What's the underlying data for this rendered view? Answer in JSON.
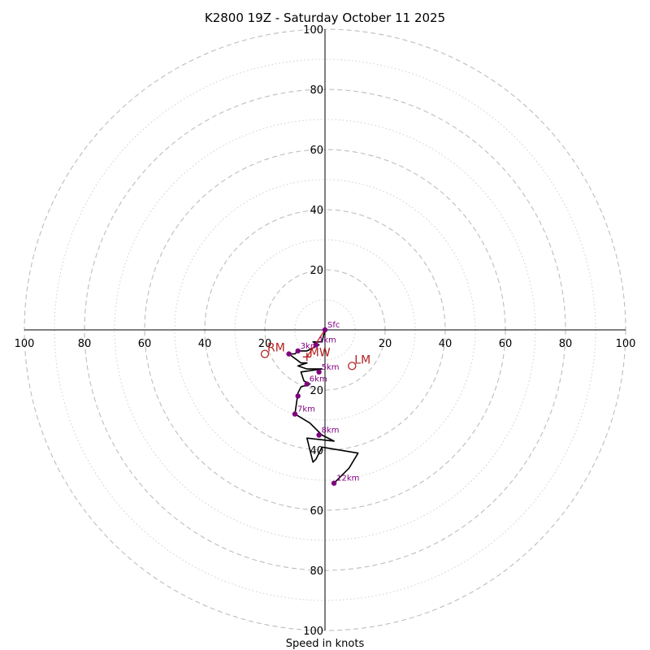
{
  "chart_data": {
    "type": "hodograph",
    "title": "K2800 19Z - Saturday October 11 2025",
    "xlabel": "Speed in knots",
    "units": "knots",
    "max_speed": 100,
    "major_rings": [
      20,
      40,
      60,
      80,
      100
    ],
    "minor_rings": [
      10,
      30,
      50,
      70,
      90
    ],
    "tick_values": [
      20,
      40,
      60,
      80,
      100
    ],
    "tick_labels": [
      "20",
      "40",
      "60",
      "80",
      "100"
    ],
    "hodograph_trace": [
      [
        0,
        0
      ],
      [
        -1,
        -4
      ],
      [
        -4,
        -4
      ],
      [
        -2,
        -5
      ],
      [
        -4,
        -6
      ],
      [
        -6,
        -7
      ],
      [
        -9,
        -7
      ],
      [
        -10,
        -8
      ],
      [
        -12,
        -8
      ],
      [
        -8,
        -11
      ],
      [
        -6,
        -11
      ],
      [
        -9,
        -12
      ],
      [
        -6,
        -13
      ],
      [
        -1,
        -13
      ],
      [
        -8,
        -14
      ],
      [
        -7,
        -17
      ],
      [
        -5,
        -18
      ],
      [
        -8,
        -19
      ],
      [
        -9,
        -21
      ],
      [
        -10,
        -28
      ],
      [
        -5,
        -31
      ],
      [
        -1,
        -35
      ],
      [
        3,
        -37
      ],
      [
        -6,
        -36
      ],
      [
        -4,
        -44
      ],
      [
        -3,
        -43
      ],
      [
        -1,
        -39
      ],
      [
        11,
        -41
      ],
      [
        8,
        -46
      ],
      [
        3,
        -51
      ]
    ],
    "height_points": [
      {
        "label": "Sfc",
        "u": 0,
        "v": 0
      },
      {
        "label": "1km",
        "u": -3,
        "v": -5
      },
      {
        "label": "3km",
        "u": -9,
        "v": -7
      },
      {
        "label": "",
        "u": -12,
        "v": -8
      },
      {
        "label": "5km",
        "u": -2,
        "v": -14
      },
      {
        "label": "6km",
        "u": -6,
        "v": -18
      },
      {
        "label": "",
        "u": -9,
        "v": -22
      },
      {
        "label": "7km",
        "u": -10,
        "v": -28
      },
      {
        "label": "8km",
        "u": -2,
        "v": -35
      },
      {
        "label": "12km",
        "u": 3,
        "v": -51
      }
    ],
    "storm_motion": [
      {
        "label": "RM",
        "u": -20,
        "v": -8
      },
      {
        "label": "LM",
        "u": 9,
        "v": -12
      }
    ],
    "mean_wind": {
      "label": "MW",
      "u": -6,
      "v": -9
    },
    "storm_motion_vector": {
      "from_u": 0,
      "from_v": 0,
      "to_u": -6,
      "to_v": -9
    }
  }
}
